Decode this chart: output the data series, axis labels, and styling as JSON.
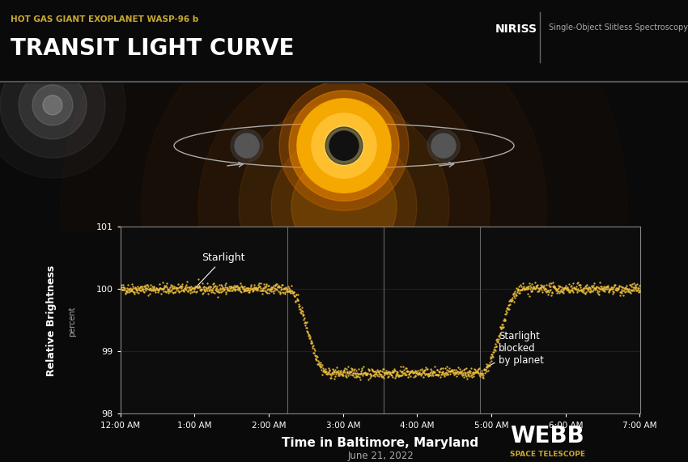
{
  "bg_color": "#0a0a0a",
  "header_color": "#111111",
  "plot_bg_color": "#0d0d0d",
  "subtitle": "HOT GAS GIANT EXOPLANET WASP-96 b",
  "title": "TRANSIT LIGHT CURVE",
  "subtitle_color": "#c8a830",
  "title_color": "#ffffff",
  "niriss_text": "NIRISS",
  "niriss_subtext": "Single-Object Slitless Spectroscopy",
  "xlabel": "Time in Baltimore, Maryland",
  "xlabel_sub": "June 21, 2022",
  "ylabel": "Relative Brightness",
  "ylabel_sub": "percent",
  "ylim": [
    98.0,
    101.0
  ],
  "yticks": [
    98,
    99,
    100,
    101
  ],
  "xtick_labels": [
    "12:00 AM",
    "1:00 AM",
    "2:00 AM",
    "3:00 AM",
    "4:00 AM",
    "5:00 AM",
    "6:00 AM",
    "7:00 AM"
  ],
  "curve_color": "#f0c040",
  "annotation_starlight": "Starlight",
  "annotation_blocked": "Starlight\nblocked\nby planet",
  "ax_edge_color": "#888888",
  "vline_color": "#666666",
  "noise_amplitude": 0.04,
  "transit_depth": 1.35,
  "ingress_time": 2.25,
  "egress_time": 4.85,
  "ingress_duration": 0.55,
  "egress_duration": 0.55,
  "webb_logo_text": "WEBB",
  "webb_sub_text": "SPACE TELESCOPE"
}
